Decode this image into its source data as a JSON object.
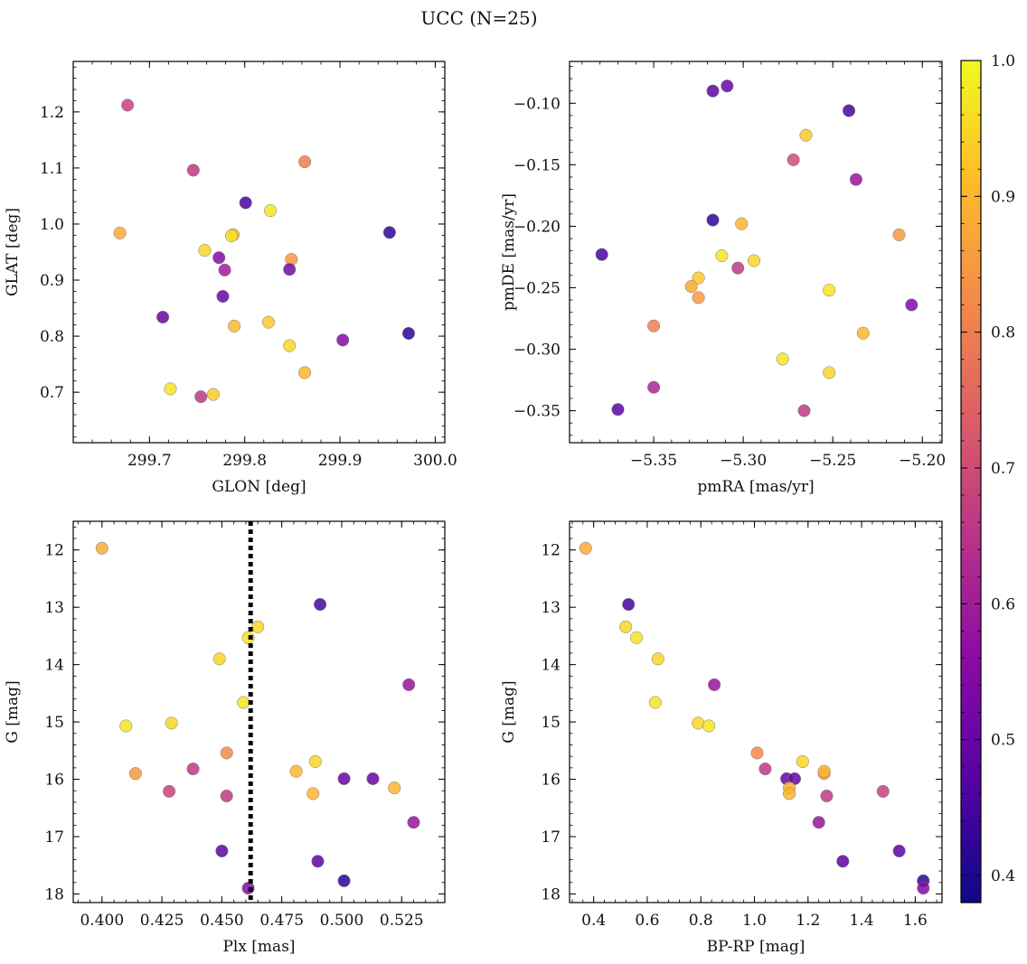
{
  "figure": {
    "title": "UCC (N=25)"
  },
  "colorbar": {
    "colormap": "plasma",
    "range": [
      0.38,
      1.0
    ],
    "ticks": [
      "0.4",
      "0.5",
      "0.6",
      "0.7",
      "0.8",
      "0.9",
      "1.0"
    ],
    "tick_values": [
      0.4,
      0.5,
      0.6,
      0.7,
      0.8,
      0.9,
      1.0
    ]
  },
  "chart_data": [
    {
      "type": "scatter",
      "panel": "top-left",
      "xlabel": "GLON [deg]",
      "ylabel": "GLAT [deg]",
      "xlim": [
        299.62,
        300.01
      ],
      "ylim": [
        0.61,
        1.29
      ],
      "xticks": [
        "299.7",
        "299.8",
        "299.9",
        "300.0"
      ],
      "xtick_values": [
        299.7,
        299.8,
        299.9,
        300.0
      ],
      "yticks": [
        "0.7",
        "0.8",
        "0.9",
        "1.0",
        "1.1",
        "1.2"
      ],
      "ytick_values": [
        0.7,
        0.8,
        0.9,
        1.0,
        1.1,
        1.2
      ],
      "points": [
        {
          "x": 299.677,
          "y": 1.212,
          "c": 0.68
        },
        {
          "x": 299.746,
          "y": 1.096,
          "c": 0.66
        },
        {
          "x": 299.863,
          "y": 1.111,
          "c": 0.8
        },
        {
          "x": 299.801,
          "y": 1.038,
          "c": 0.45
        },
        {
          "x": 299.827,
          "y": 1.024,
          "c": 0.97
        },
        {
          "x": 299.669,
          "y": 0.984,
          "c": 0.88
        },
        {
          "x": 299.788,
          "y": 0.981,
          "c": 0.9
        },
        {
          "x": 299.786,
          "y": 0.979,
          "c": 0.97
        },
        {
          "x": 299.952,
          "y": 0.985,
          "c": 0.42
        },
        {
          "x": 299.758,
          "y": 0.953,
          "c": 0.95
        },
        {
          "x": 299.773,
          "y": 0.94,
          "c": 0.55
        },
        {
          "x": 299.849,
          "y": 0.937,
          "c": 0.85
        },
        {
          "x": 299.779,
          "y": 0.918,
          "c": 0.6
        },
        {
          "x": 299.847,
          "y": 0.919,
          "c": 0.52
        },
        {
          "x": 299.777,
          "y": 0.871,
          "c": 0.5
        },
        {
          "x": 299.714,
          "y": 0.834,
          "c": 0.5
        },
        {
          "x": 299.825,
          "y": 0.825,
          "c": 0.93
        },
        {
          "x": 299.789,
          "y": 0.818,
          "c": 0.9
        },
        {
          "x": 299.972,
          "y": 0.805,
          "c": 0.42
        },
        {
          "x": 299.903,
          "y": 0.793,
          "c": 0.55
        },
        {
          "x": 299.847,
          "y": 0.783,
          "c": 0.95
        },
        {
          "x": 299.863,
          "y": 0.735,
          "c": 0.9
        },
        {
          "x": 299.722,
          "y": 0.706,
          "c": 0.97
        },
        {
          "x": 299.767,
          "y": 0.696,
          "c": 0.93
        },
        {
          "x": 299.754,
          "y": 0.692,
          "c": 0.66
        }
      ]
    },
    {
      "type": "scatter",
      "panel": "top-right",
      "xlabel": "pmRA [mas/yr]",
      "ylabel": "pmDE [mas/yr]",
      "xlim": [
        -5.397,
        -5.189
      ],
      "ylim": [
        -0.376,
        -0.066
      ],
      "xticks": [
        "−5.35",
        "−5.30",
        "−5.25",
        "−5.20"
      ],
      "xtick_values": [
        -5.35,
        -5.3,
        -5.25,
        -5.2
      ],
      "yticks": [
        "−0.35",
        "−0.30",
        "−0.25",
        "−0.20",
        "−0.15",
        "−0.10"
      ],
      "ytick_values": [
        -0.35,
        -0.3,
        -0.25,
        -0.2,
        -0.15,
        -0.1
      ],
      "points": [
        {
          "x": -5.309,
          "y": -0.086,
          "c": 0.5
        },
        {
          "x": -5.317,
          "y": -0.09,
          "c": 0.48
        },
        {
          "x": -5.241,
          "y": -0.106,
          "c": 0.45
        },
        {
          "x": -5.265,
          "y": -0.126,
          "c": 0.93
        },
        {
          "x": -5.272,
          "y": -0.146,
          "c": 0.7
        },
        {
          "x": -5.237,
          "y": -0.162,
          "c": 0.58
        },
        {
          "x": -5.317,
          "y": -0.195,
          "c": 0.42
        },
        {
          "x": -5.301,
          "y": -0.198,
          "c": 0.9
        },
        {
          "x": -5.213,
          "y": -0.207,
          "c": 0.85
        },
        {
          "x": -5.379,
          "y": -0.223,
          "c": 0.45
        },
        {
          "x": -5.312,
          "y": -0.224,
          "c": 0.97
        },
        {
          "x": -5.294,
          "y": -0.228,
          "c": 0.95
        },
        {
          "x": -5.303,
          "y": -0.234,
          "c": 0.66
        },
        {
          "x": -5.325,
          "y": -0.242,
          "c": 0.93
        },
        {
          "x": -5.329,
          "y": -0.249,
          "c": 0.88
        },
        {
          "x": -5.252,
          "y": -0.252,
          "c": 0.97
        },
        {
          "x": -5.325,
          "y": -0.258,
          "c": 0.85
        },
        {
          "x": -5.206,
          "y": -0.264,
          "c": 0.55
        },
        {
          "x": -5.35,
          "y": -0.281,
          "c": 0.8
        },
        {
          "x": -5.233,
          "y": -0.287,
          "c": 0.9
        },
        {
          "x": -5.278,
          "y": -0.308,
          "c": 0.97
        },
        {
          "x": -5.252,
          "y": -0.319,
          "c": 0.95
        },
        {
          "x": -5.35,
          "y": -0.331,
          "c": 0.62
        },
        {
          "x": -5.37,
          "y": -0.349,
          "c": 0.48
        },
        {
          "x": -5.266,
          "y": -0.35,
          "c": 0.66
        }
      ]
    },
    {
      "type": "scatter",
      "panel": "bottom-left",
      "xlabel": "Plx [mas]",
      "ylabel": "G [mag]",
      "xlim": [
        0.388,
        0.543
      ],
      "ylim": [
        18.15,
        11.5
      ],
      "y_inverted": true,
      "vline": {
        "x": 0.462,
        "style": "dotted",
        "color": "#000000"
      },
      "xticks": [
        "0.400",
        "0.425",
        "0.450",
        "0.475",
        "0.500",
        "0.525"
      ],
      "xtick_values": [
        0.4,
        0.425,
        0.45,
        0.475,
        0.5,
        0.525
      ],
      "yticks": [
        "12",
        "13",
        "14",
        "15",
        "16",
        "17",
        "18"
      ],
      "ytick_values": [
        12,
        13,
        14,
        15,
        16,
        17,
        18
      ],
      "points": [
        {
          "x": 0.4,
          "y": 11.97,
          "c": 0.88
        },
        {
          "x": 0.491,
          "y": 12.95,
          "c": 0.45
        },
        {
          "x": 0.465,
          "y": 13.34,
          "c": 0.95
        },
        {
          "x": 0.461,
          "y": 13.53,
          "c": 0.97
        },
        {
          "x": 0.449,
          "y": 13.9,
          "c": 0.95
        },
        {
          "x": 0.528,
          "y": 14.35,
          "c": 0.58
        },
        {
          "x": 0.459,
          "y": 14.66,
          "c": 0.97
        },
        {
          "x": 0.429,
          "y": 15.02,
          "c": 0.95
        },
        {
          "x": 0.41,
          "y": 15.07,
          "c": 0.97
        },
        {
          "x": 0.452,
          "y": 15.54,
          "c": 0.82
        },
        {
          "x": 0.489,
          "y": 15.69,
          "c": 0.95
        },
        {
          "x": 0.438,
          "y": 15.82,
          "c": 0.66
        },
        {
          "x": 0.414,
          "y": 15.9,
          "c": 0.85
        },
        {
          "x": 0.481,
          "y": 15.86,
          "c": 0.9
        },
        {
          "x": 0.501,
          "y": 15.99,
          "c": 0.5
        },
        {
          "x": 0.513,
          "y": 15.99,
          "c": 0.5
        },
        {
          "x": 0.522,
          "y": 16.15,
          "c": 0.9
        },
        {
          "x": 0.428,
          "y": 16.21,
          "c": 0.68
        },
        {
          "x": 0.488,
          "y": 16.25,
          "c": 0.9
        },
        {
          "x": 0.452,
          "y": 16.29,
          "c": 0.66
        },
        {
          "x": 0.53,
          "y": 16.75,
          "c": 0.58
        },
        {
          "x": 0.45,
          "y": 17.25,
          "c": 0.48
        },
        {
          "x": 0.49,
          "y": 17.43,
          "c": 0.48
        },
        {
          "x": 0.501,
          "y": 17.77,
          "c": 0.42
        },
        {
          "x": 0.461,
          "y": 17.9,
          "c": 0.55
        }
      ]
    },
    {
      "type": "scatter",
      "panel": "bottom-right",
      "xlabel": "BP-RP [mag]",
      "ylabel": "G [mag]",
      "xlim": [
        0.31,
        1.7
      ],
      "ylim": [
        18.15,
        11.5
      ],
      "y_inverted": true,
      "xticks": [
        "0.4",
        "0.6",
        "0.8",
        "1.0",
        "1.2",
        "1.4",
        "1.6"
      ],
      "xtick_values": [
        0.4,
        0.6,
        0.8,
        1.0,
        1.2,
        1.4,
        1.6
      ],
      "yticks": [
        "12",
        "13",
        "14",
        "15",
        "16",
        "17",
        "18"
      ],
      "ytick_values": [
        12,
        13,
        14,
        15,
        16,
        17,
        18
      ],
      "points": [
        {
          "x": 0.37,
          "y": 11.97,
          "c": 0.88
        },
        {
          "x": 0.53,
          "y": 12.95,
          "c": 0.45
        },
        {
          "x": 0.52,
          "y": 13.34,
          "c": 0.95
        },
        {
          "x": 0.56,
          "y": 13.53,
          "c": 0.97
        },
        {
          "x": 0.64,
          "y": 13.9,
          "c": 0.95
        },
        {
          "x": 0.85,
          "y": 14.35,
          "c": 0.58
        },
        {
          "x": 0.63,
          "y": 14.66,
          "c": 0.97
        },
        {
          "x": 0.79,
          "y": 15.02,
          "c": 0.95
        },
        {
          "x": 0.83,
          "y": 15.07,
          "c": 0.97
        },
        {
          "x": 1.01,
          "y": 15.54,
          "c": 0.82
        },
        {
          "x": 1.18,
          "y": 15.69,
          "c": 0.95
        },
        {
          "x": 1.04,
          "y": 15.82,
          "c": 0.66
        },
        {
          "x": 1.26,
          "y": 15.9,
          "c": 0.85
        },
        {
          "x": 1.26,
          "y": 15.86,
          "c": 0.9
        },
        {
          "x": 1.12,
          "y": 15.99,
          "c": 0.5
        },
        {
          "x": 1.15,
          "y": 15.99,
          "c": 0.5
        },
        {
          "x": 1.13,
          "y": 16.15,
          "c": 0.9
        },
        {
          "x": 1.48,
          "y": 16.21,
          "c": 0.68
        },
        {
          "x": 1.13,
          "y": 16.25,
          "c": 0.9
        },
        {
          "x": 1.27,
          "y": 16.29,
          "c": 0.66
        },
        {
          "x": 1.24,
          "y": 16.75,
          "c": 0.58
        },
        {
          "x": 1.54,
          "y": 17.25,
          "c": 0.48
        },
        {
          "x": 1.33,
          "y": 17.43,
          "c": 0.48
        },
        {
          "x": 1.63,
          "y": 17.77,
          "c": 0.42
        },
        {
          "x": 1.63,
          "y": 17.9,
          "c": 0.55
        }
      ]
    }
  ]
}
